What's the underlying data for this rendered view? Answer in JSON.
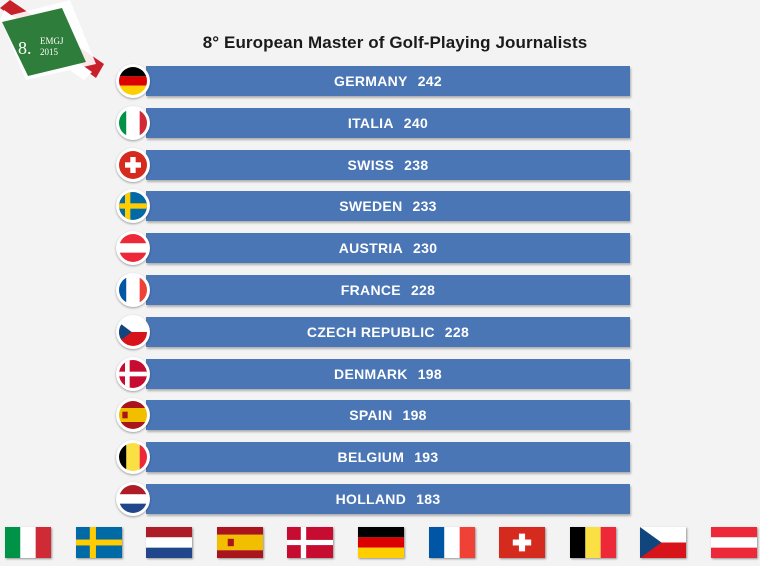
{
  "logo": {
    "number": "8.",
    "line1": "EMGJ",
    "line2": "2015"
  },
  "title": "8°  European Master of Golf-Playing Journalists",
  "chart_data": {
    "type": "table",
    "title": "8°  European Master of Golf-Playing Journalists",
    "rows": [
      {
        "country": "GERMANY",
        "score": "242",
        "flag": "germany"
      },
      {
        "country": "ITALIA",
        "score": "240",
        "flag": "italy"
      },
      {
        "country": "SWISS",
        "score": "238",
        "flag": "switzerland"
      },
      {
        "country": "SWEDEN",
        "score": "233",
        "flag": "sweden"
      },
      {
        "country": "AUSTRIA",
        "score": "230",
        "flag": "austria"
      },
      {
        "country": "FRANCE",
        "score": "228",
        "flag": "france"
      },
      {
        "country": "CZECH REPUBLIC",
        "score": "228",
        "flag": "czech"
      },
      {
        "country": "DENMARK",
        "score": "198",
        "flag": "denmark"
      },
      {
        "country": "SPAIN",
        "score": "198",
        "flag": "spain"
      },
      {
        "country": "BELGIUM",
        "score": "193",
        "flag": "belgium"
      },
      {
        "country": "HOLLAND",
        "score": "183",
        "flag": "netherlands"
      }
    ]
  },
  "bottom_flags": [
    "italy",
    "sweden",
    "netherlands",
    "spain",
    "denmark",
    "germany",
    "france",
    "switzerland",
    "belgium",
    "czech",
    "austria"
  ],
  "colors": {
    "bar": "#4a76b6",
    "bar_text": "#ffffff",
    "background": "#f3f3f3",
    "logo_green": "#2e7d3a",
    "logo_red": "#c8202a"
  }
}
